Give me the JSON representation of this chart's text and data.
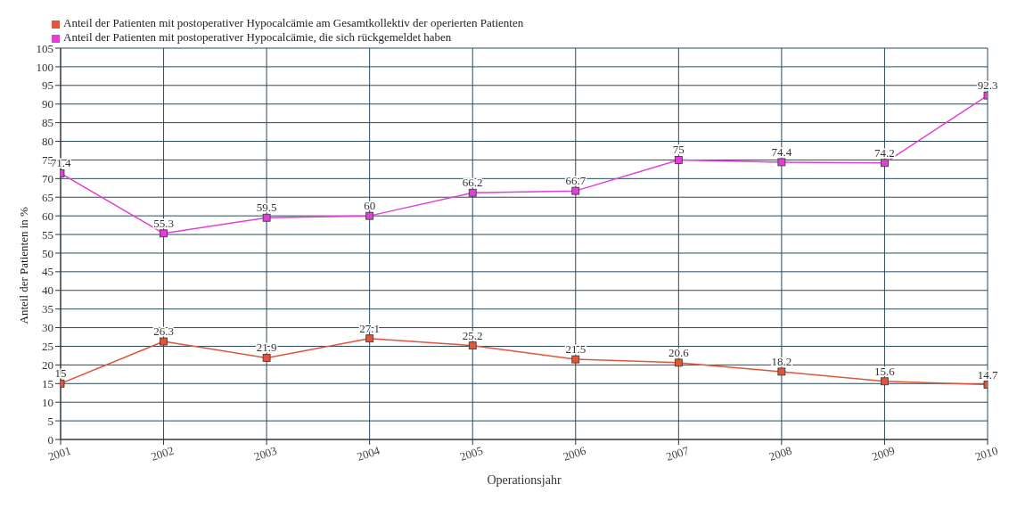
{
  "chart_data": {
    "type": "line",
    "xlabel": "Operationsjahr",
    "ylabel": "Anteil der Patienten in %",
    "x": [
      2001,
      2002,
      2003,
      2004,
      2005,
      2006,
      2007,
      2008,
      2009,
      2010
    ],
    "series": [
      {
        "name": "Anteil der Patienten mit postoperativer Hypocalcämie am Gesamtkollektiv der operierten Patienten",
        "color": "#e0563a",
        "values": [
          15,
          26.3,
          21.9,
          27.1,
          25.2,
          21.5,
          20.6,
          18.2,
          15.6,
          14.7
        ]
      },
      {
        "name": "Anteil der Patienten mit postoperativer Hypocalcämie, die sich rückgemeldet haben",
        "color": "#e040d8",
        "values": [
          71.4,
          55.3,
          59.5,
          60,
          66.2,
          66.7,
          75,
          74.4,
          74.2,
          92.3
        ]
      }
    ],
    "xlim": [
      2001,
      2010
    ],
    "xticks": [
      2001,
      2002,
      2003,
      2004,
      2005,
      2006,
      2007,
      2008,
      2009,
      2010
    ],
    "ylim": [
      0,
      105
    ],
    "yticks": [
      0,
      5,
      10,
      15,
      20,
      25,
      30,
      35,
      40,
      45,
      50,
      55,
      60,
      65,
      70,
      75,
      80,
      85,
      90,
      95,
      100,
      105
    ],
    "grid": true,
    "legend": "top left",
    "marker": "square",
    "line_style": "solid",
    "data_labels": true
  }
}
